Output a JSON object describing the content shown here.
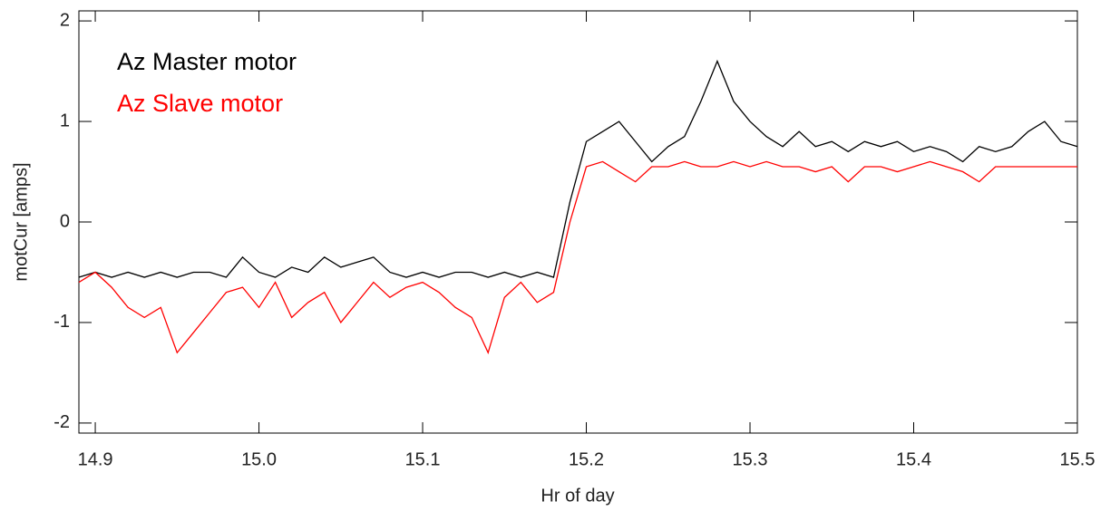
{
  "chart_data": {
    "type": "line",
    "xlabel": "Hr of day",
    "ylabel": "motCur [amps]",
    "x": [
      14.89,
      14.9,
      14.91,
      14.92,
      14.93,
      14.94,
      14.95,
      14.96,
      14.97,
      14.98,
      14.99,
      15.0,
      15.01,
      15.02,
      15.03,
      15.04,
      15.05,
      15.06,
      15.07,
      15.08,
      15.09,
      15.1,
      15.11,
      15.12,
      15.13,
      15.14,
      15.15,
      15.16,
      15.17,
      15.18,
      15.19,
      15.2,
      15.21,
      15.22,
      15.23,
      15.24,
      15.25,
      15.26,
      15.27,
      15.28,
      15.29,
      15.3,
      15.31,
      15.32,
      15.33,
      15.34,
      15.35,
      15.36,
      15.37,
      15.38,
      15.39,
      15.4,
      15.41,
      15.42,
      15.43,
      15.44,
      15.45,
      15.46,
      15.47,
      15.48,
      15.49,
      15.5
    ],
    "series": [
      {
        "name": "Az Master motor",
        "color": "#000000",
        "values": [
          -0.55,
          -0.5,
          -0.55,
          -0.5,
          -0.55,
          -0.5,
          -0.55,
          -0.5,
          -0.5,
          -0.55,
          -0.35,
          -0.5,
          -0.55,
          -0.45,
          -0.5,
          -0.35,
          -0.45,
          -0.4,
          -0.35,
          -0.5,
          -0.55,
          -0.5,
          -0.55,
          -0.5,
          -0.5,
          -0.55,
          -0.5,
          -0.55,
          -0.5,
          -0.55,
          0.2,
          0.8,
          0.9,
          1.0,
          0.8,
          0.6,
          0.75,
          0.85,
          1.2,
          1.6,
          1.2,
          1.0,
          0.85,
          0.75,
          0.9,
          0.75,
          0.8,
          0.7,
          0.8,
          0.75,
          0.8,
          0.7,
          0.75,
          0.7,
          0.6,
          0.75,
          0.7,
          0.75,
          0.9,
          1.0,
          0.8,
          0.75
        ]
      },
      {
        "name": "Az Slave motor",
        "color": "#ff0000",
        "values": [
          -0.6,
          -0.5,
          -0.65,
          -0.85,
          -0.95,
          -0.85,
          -1.3,
          -1.1,
          -0.9,
          -0.7,
          -0.65,
          -0.85,
          -0.6,
          -0.95,
          -0.8,
          -0.7,
          -1.0,
          -0.8,
          -0.6,
          -0.75,
          -0.65,
          -0.6,
          -0.7,
          -0.85,
          -0.95,
          -1.3,
          -0.75,
          -0.6,
          -0.8,
          -0.7,
          0.0,
          0.55,
          0.6,
          0.5,
          0.4,
          0.55,
          0.55,
          0.6,
          0.55,
          0.55,
          0.6,
          0.55,
          0.6,
          0.55,
          0.55,
          0.5,
          0.55,
          0.4,
          0.55,
          0.55,
          0.5,
          0.55,
          0.6,
          0.55,
          0.5,
          0.4,
          0.55,
          0.55,
          0.55,
          0.55,
          0.55,
          0.55
        ]
      }
    ],
    "xlim": [
      14.89,
      15.5
    ],
    "ylim": [
      -2.1,
      2.1
    ],
    "xticks": [
      14.9,
      {
        "value": 15.0,
        "label": "15.0"
      },
      15.1,
      15.2,
      15.3,
      15.4,
      15.5
    ],
    "yticks": [
      -2,
      -1,
      0,
      1,
      2
    ],
    "legend": "upper left"
  }
}
